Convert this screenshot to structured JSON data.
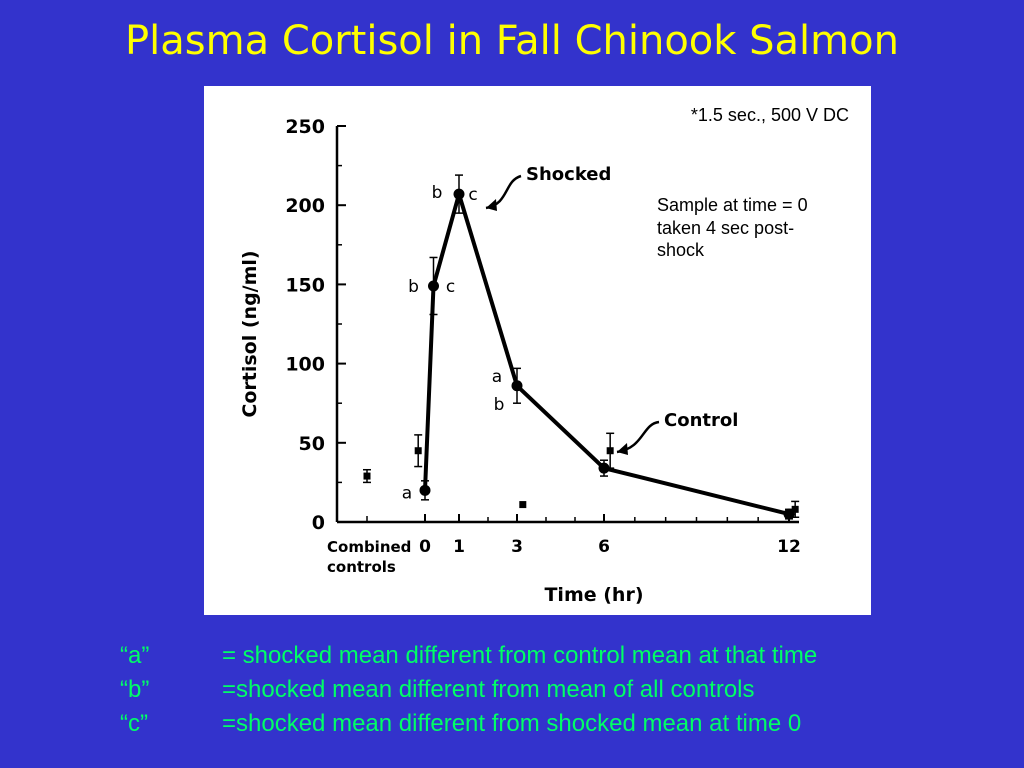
{
  "slide_title": "Plasma Cortisol in Fall Chinook Salmon",
  "notes": {
    "shock_params": "*1.5 sec., 500 V DC",
    "sample_line1": "Sample at time = 0",
    "sample_line2": "taken 4 sec post-",
    "sample_line3": "shock"
  },
  "legend": [
    {
      "key": "“a”",
      "desc": "= shocked mean different from control mean at that time"
    },
    {
      "key": "“b”",
      "desc": "=shocked mean different from mean of all controls"
    },
    {
      "key": "“c”",
      "desc": "=shocked mean different from shocked mean at time 0"
    }
  ],
  "chart_data": {
    "type": "line",
    "xlabel": "Time (hr)",
    "ylabel": "Cortisol (ng/ml)",
    "ylim": [
      0,
      250
    ],
    "yticks": [
      0,
      50,
      100,
      150,
      200,
      250
    ],
    "xtick_labels": [
      "0",
      "1",
      "3",
      "6",
      "12"
    ],
    "xtick_values": [
      0,
      1,
      3,
      6,
      12
    ],
    "combined_label_line1": "Combined",
    "combined_label_line2": "controls",
    "combined_controls": {
      "value": 29,
      "err": 4
    },
    "series": [
      {
        "name": "Shocked",
        "marker": "circle",
        "connected": true,
        "x": [
          0,
          0.25,
          1,
          3,
          6,
          12
        ],
        "y": [
          20,
          149,
          207,
          86,
          34,
          5
        ],
        "err": [
          6,
          18,
          12,
          11,
          5,
          3
        ],
        "sig": [
          "a",
          "b c",
          "b c",
          "a b",
          "",
          ""
        ]
      },
      {
        "name": "Control",
        "marker": "square",
        "connected": false,
        "x": [
          -0.2,
          3.2,
          6.2,
          12.2
        ],
        "y": [
          45,
          11,
          45,
          8
        ],
        "err": [
          10,
          0,
          11,
          5
        ]
      }
    ],
    "colors": {
      "line": "#000000",
      "text": "#000000"
    }
  }
}
